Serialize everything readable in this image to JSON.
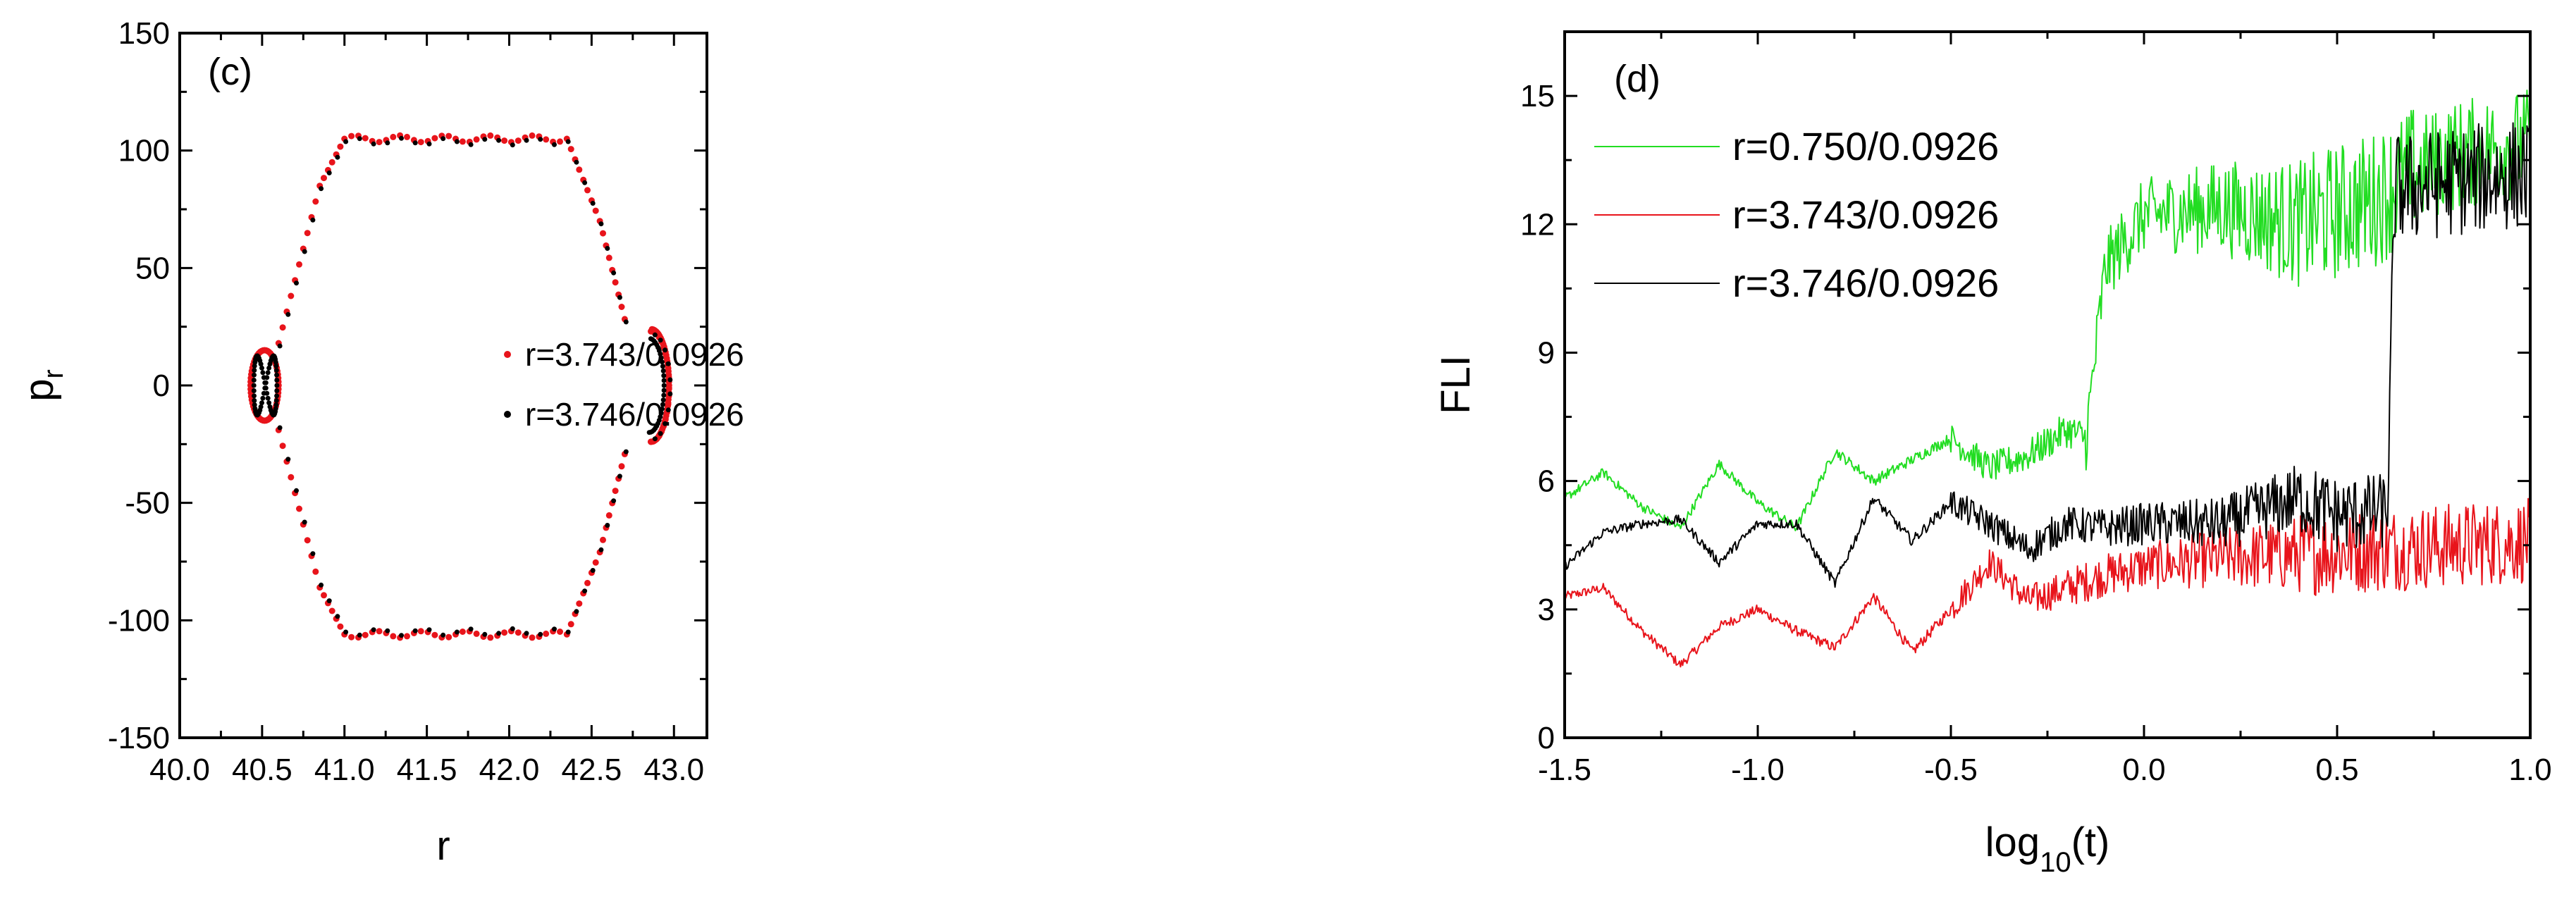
{
  "chart_data": [
    {
      "panel": "(c)",
      "type": "scatter",
      "xlabel": "r",
      "ylabel_base": "p",
      "ylabel_sub": "r",
      "xlim": [
        40.0,
        43.2
      ],
      "ylim": [
        -150,
        150
      ],
      "xticks": [
        "40.0",
        "40.5",
        "41.0",
        "41.5",
        "42.0",
        "42.5",
        "43.0"
      ],
      "yticks": [
        "-150",
        "-100",
        "-50",
        "0",
        "50",
        "100",
        "150"
      ],
      "series": [
        {
          "name": "r=3.743/0.0926",
          "color": "#e8141b",
          "description": "Poincare section points on outer invariant curve (hexagonal loop with lobes at both ends)"
        },
        {
          "name": "r=3.746/0.0926",
          "color": "#000000",
          "description": "Poincare section points tracing the same loop, with a figure-eight crossing near r=40.5"
        }
      ],
      "shape": {
        "top_plateau_p": 105,
        "bottom_plateau_p": -106,
        "plateau_r": [
          41.0,
          42.35
        ],
        "left_lobe_r": [
          40.43,
          40.6
        ],
        "left_lobe_p": [
          -18,
          18
        ],
        "right_lobe_r": [
          42.75,
          42.97
        ],
        "right_lobe_p": [
          -25,
          25
        ]
      }
    },
    {
      "panel": "(d)",
      "type": "line",
      "xlabel_base": "log",
      "xlabel_sub": "10",
      "xlabel_tail": "(t)",
      "ylabel": "FLI",
      "xlim": [
        -1.5,
        1.0
      ],
      "ylim": [
        0,
        16.5
      ],
      "xticks": [
        "-1.5",
        "-1.0",
        "-0.5",
        "0.0",
        "0.5",
        "1.0"
      ],
      "yticks": [
        "0",
        "3",
        "6",
        "9",
        "12",
        "15"
      ],
      "series": [
        {
          "name": "r=0.750/0.0926",
          "color": "#22dd22",
          "x": [
            -1.5,
            -1.4,
            -1.3,
            -1.2,
            -1.1,
            -1.0,
            -0.9,
            -0.8,
            -0.7,
            -0.6,
            -0.5,
            -0.4,
            -0.3,
            -0.2,
            -0.15,
            -0.1,
            0.0,
            0.2,
            0.4,
            0.6,
            0.7,
            0.8,
            1.0
          ],
          "y": [
            5.6,
            6.2,
            5.4,
            4.9,
            6.4,
            5.5,
            4.9,
            6.7,
            6.0,
            6.5,
            7.0,
            6.3,
            6.6,
            7.2,
            7.0,
            11.0,
            12.2,
            12.4,
            12.0,
            12.6,
            13.2,
            13.6,
            13.9
          ]
        },
        {
          "name": "r=3.743/0.0926",
          "color": "#e8141b",
          "x": [
            -1.5,
            -1.4,
            -1.3,
            -1.2,
            -1.1,
            -1.0,
            -0.9,
            -0.8,
            -0.7,
            -0.6,
            -0.5,
            -0.4,
            -0.3,
            -0.2,
            -0.1,
            0.0,
            0.2,
            0.4,
            0.6,
            0.8,
            1.0
          ],
          "y": [
            3.3,
            3.5,
            2.5,
            1.7,
            2.6,
            3.0,
            2.5,
            2.1,
            3.3,
            2.0,
            3.0,
            4.1,
            3.2,
            3.5,
            3.8,
            4.0,
            4.2,
            4.3,
            4.4,
            4.5,
            4.6
          ]
        },
        {
          "name": "r=3.746/0.0926",
          "color": "#000000",
          "x": [
            -1.5,
            -1.4,
            -1.3,
            -1.2,
            -1.1,
            -1.0,
            -0.9,
            -0.8,
            -0.7,
            -0.6,
            -0.5,
            -0.4,
            -0.3,
            -0.2,
            -0.1,
            0.0,
            0.2,
            0.4,
            0.5,
            0.63,
            0.65,
            0.8,
            1.0
          ],
          "y": [
            4.0,
            4.8,
            5.0,
            5.1,
            4.1,
            5.0,
            5.0,
            3.6,
            5.6,
            4.6,
            5.5,
            5.0,
            4.4,
            5.0,
            4.9,
            5.0,
            5.0,
            5.6,
            5.2,
            5.3,
            12.8,
            13.0,
            13.2
          ]
        }
      ]
    }
  ]
}
